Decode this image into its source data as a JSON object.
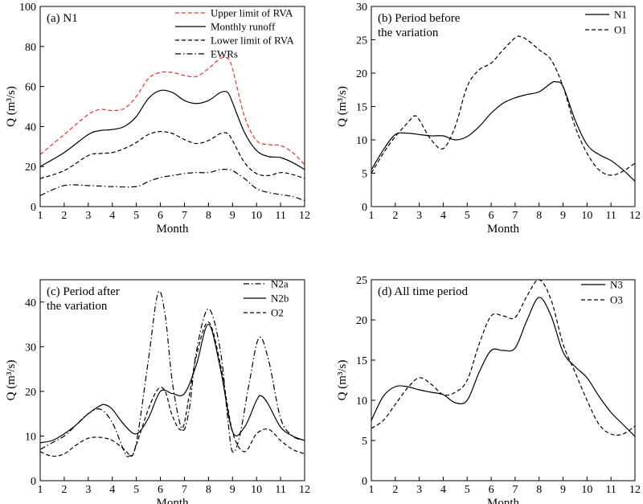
{
  "chart_data": [
    {
      "type": "line",
      "title": "(a) N1",
      "xlabel": "Month",
      "ylabel": "Q (m³/s)",
      "xlim": [
        1,
        12
      ],
      "ylim": [
        0,
        100
      ],
      "xticks": [
        "1",
        "2",
        "3",
        "4",
        "5",
        "6",
        "7",
        "8",
        "9",
        "10",
        "11",
        "12"
      ],
      "yticks": [
        "0",
        "20",
        "40",
        "60",
        "80",
        "100"
      ],
      "legend_position": "top-right",
      "series": [
        {
          "name": "Upper limit of RVA",
          "style": "dashed",
          "color": "#e8302a",
          "x": [
            1,
            2,
            3,
            3.5,
            4,
            4.5,
            5,
            5.5,
            6,
            6.5,
            7,
            7.5,
            8,
            8.5,
            8.8,
            9,
            9.5,
            10,
            10.5,
            11,
            11.5,
            12
          ],
          "y": [
            26,
            36,
            46,
            48.5,
            48,
            49,
            55,
            64,
            67,
            67,
            65.5,
            65,
            69,
            74,
            74,
            69,
            45,
            33,
            31,
            30.5,
            27,
            21
          ]
        },
        {
          "name": "Monthly runoff",
          "style": "solid",
          "color": "#000000",
          "x": [
            1,
            2,
            3,
            3.5,
            4,
            4.5,
            5,
            5.5,
            6,
            6.5,
            7,
            7.5,
            8,
            8.5,
            8.8,
            9,
            9.5,
            10,
            10.5,
            11,
            11.5,
            12
          ],
          "y": [
            20,
            27,
            36,
            38,
            38.5,
            40,
            45,
            54,
            58,
            57,
            53,
            51.5,
            53,
            57,
            57,
            52,
            37,
            28,
            25,
            24.5,
            22,
            18.5
          ]
        },
        {
          "name": "Lower limit of RVA",
          "style": "dashed",
          "color": "#000000",
          "x": [
            1,
            2,
            3,
            3.5,
            4,
            4.5,
            5,
            5.5,
            6,
            6.5,
            7,
            7.5,
            8,
            8.5,
            8.8,
            9,
            9.5,
            10,
            10.5,
            11,
            11.5,
            12
          ],
          "y": [
            14,
            18,
            25.5,
            26.5,
            27,
            29,
            32,
            36,
            37.5,
            36.5,
            33.5,
            31.5,
            33,
            36.5,
            36.5,
            33,
            22,
            16.5,
            15.5,
            17,
            16,
            14
          ]
        },
        {
          "name": "EWRs",
          "style": "dashdot",
          "color": "#000000",
          "x": [
            1,
            2,
            3,
            4,
            5,
            5.5,
            6,
            6.5,
            7,
            7.5,
            8,
            8.5,
            8.8,
            9,
            9.5,
            10,
            10.5,
            11,
            11.5,
            12
          ],
          "y": [
            5.5,
            10.5,
            10.5,
            10,
            10,
            12.5,
            14.5,
            15.5,
            16.5,
            17,
            17,
            18.5,
            18.5,
            18,
            14,
            9,
            7,
            6,
            5,
            3
          ]
        }
      ]
    },
    {
      "type": "line",
      "title": "(b) Period before",
      "title_line2": "the variation",
      "xlabel": "Month",
      "ylabel": "Q (m³/s)",
      "xlim": [
        1,
        12
      ],
      "ylim": [
        0,
        30
      ],
      "xticks": [
        "1",
        "2",
        "3",
        "4",
        "5",
        "6",
        "7",
        "8",
        "9",
        "10",
        "11",
        "12"
      ],
      "yticks": [
        "0",
        "5",
        "10",
        "15",
        "20",
        "25",
        "30"
      ],
      "legend_position": "top-right",
      "series": [
        {
          "name": "N1",
          "style": "solid",
          "color": "#000000",
          "x": [
            1,
            1.5,
            2,
            2.5,
            3,
            3.5,
            4,
            4.5,
            5,
            5.5,
            6,
            6.5,
            7,
            7.5,
            8,
            8.5,
            8.7,
            9,
            9.5,
            10,
            10.5,
            11,
            11.5,
            12
          ],
          "y": [
            5.5,
            8.5,
            10.8,
            11,
            10.8,
            10.6,
            10.6,
            10,
            10.5,
            12,
            14,
            15.5,
            16.3,
            16.8,
            17.2,
            18.5,
            18.7,
            18,
            13,
            9.3,
            7.8,
            6.9,
            5.5,
            3.8
          ]
        },
        {
          "name": "O1",
          "style": "dashed",
          "color": "#000000",
          "x": [
            1,
            1.5,
            2,
            2.5,
            2.8,
            3,
            3.5,
            4,
            4.5,
            5,
            5.5,
            6,
            6.5,
            7,
            7.2,
            7.5,
            8,
            8.5,
            9,
            9.5,
            10,
            10.5,
            11,
            11.5,
            12
          ],
          "y": [
            5,
            8,
            10.5,
            12.5,
            13.6,
            13,
            10,
            8.7,
            12,
            18,
            20.5,
            21.5,
            23.5,
            25.3,
            25.5,
            25,
            23.5,
            22,
            18,
            12,
            8,
            5.5,
            4.7,
            5.3,
            6.5
          ]
        }
      ]
    },
    {
      "type": "line",
      "title": "(c) Period after",
      "title_line2": "the variation",
      "xlabel": "Month",
      "ylabel": "Q (m³/s)",
      "xlim": [
        1,
        12
      ],
      "ylim": [
        0,
        45
      ],
      "xticks": [
        "1",
        "2",
        "3",
        "4",
        "5",
        "6",
        "7",
        "8",
        "9",
        "10",
        "11",
        "12"
      ],
      "yticks": [
        "0",
        "10",
        "20",
        "30",
        "40"
      ],
      "legend_position": "top-right",
      "series": [
        {
          "name": "N2a",
          "style": "dashdot",
          "color": "#000000",
          "x": [
            1,
            1.5,
            2,
            2.5,
            3,
            3.5,
            4,
            4.5,
            4.7,
            5,
            5.5,
            5.9,
            6.2,
            6.5,
            6.9,
            7.2,
            7.5,
            8,
            8.5,
            8.8,
            9,
            9.3,
            9.7,
            10.1,
            10.5,
            11,
            11.5,
            12
          ],
          "y": [
            7,
            8.5,
            10,
            12.5,
            15,
            16,
            13,
            6.5,
            5.5,
            8.5,
            27,
            42,
            37,
            22,
            11.5,
            16,
            29,
            38.5,
            29,
            14,
            6.5,
            10,
            22,
            32,
            27,
            14,
            10,
            9
          ]
        },
        {
          "name": "N2b",
          "style": "solid",
          "color": "#000000",
          "x": [
            1,
            1.5,
            2,
            2.5,
            3,
            3.5,
            3.7,
            4,
            4.5,
            5,
            5.5,
            6,
            6.5,
            7,
            7.5,
            8,
            8.5,
            9,
            9.5,
            10,
            10.2,
            10.5,
            11,
            11.5,
            12
          ],
          "y": [
            8.5,
            9,
            10.5,
            12.5,
            15,
            16.8,
            17,
            16,
            12.5,
            10.5,
            14,
            20,
            19.5,
            19.5,
            26,
            35,
            25,
            11,
            12,
            18,
            19,
            17,
            12,
            10,
            9
          ]
        },
        {
          "name": "O2",
          "style": "dashed",
          "color": "#000000",
          "x": [
            1,
            1.5,
            2,
            2.5,
            3,
            3.5,
            4,
            4.5,
            4.8,
            5,
            5.5,
            5.9,
            6.2,
            6.5,
            6.9,
            7.2,
            7.5,
            8,
            8.5,
            9,
            9.5,
            10,
            10.5,
            11,
            11.5,
            12
          ],
          "y": [
            6.5,
            5.5,
            6,
            8,
            9.5,
            9.7,
            9,
            7,
            5.5,
            8,
            16,
            20.5,
            20,
            14.5,
            11.5,
            19,
            28,
            35.5,
            26,
            11,
            6.5,
            10.5,
            11.5,
            9,
            7,
            6
          ]
        }
      ]
    },
    {
      "type": "line",
      "title": "(d) All time period",
      "xlabel": "Month",
      "ylabel": "Q (m³/s)",
      "xlim": [
        1,
        12
      ],
      "ylim": [
        0,
        25
      ],
      "xticks": [
        "1",
        "2",
        "3",
        "4",
        "5",
        "6",
        "7",
        "8",
        "9",
        "10",
        "11",
        "12"
      ],
      "yticks": [
        "0",
        "5",
        "10",
        "15",
        "20",
        "25"
      ],
      "legend_position": "top-right",
      "series": [
        {
          "name": "N3",
          "style": "solid",
          "color": "#000000",
          "x": [
            1,
            1.5,
            2,
            2.5,
            3,
            3.5,
            4,
            4.5,
            5,
            5.5,
            6,
            6.5,
            7,
            7.5,
            8,
            8.5,
            9,
            9.5,
            10,
            10.5,
            11,
            11.5,
            12
          ],
          "y": [
            7.5,
            10.5,
            11.7,
            11.7,
            11.3,
            11,
            10.7,
            9.7,
            10,
            13.5,
            16.2,
            16.2,
            16.5,
            20,
            22.8,
            20.5,
            16,
            14.2,
            12.8,
            10.5,
            8.5,
            7,
            5.5
          ]
        },
        {
          "name": "O3",
          "style": "dashed",
          "color": "#000000",
          "x": [
            1,
            1.5,
            2,
            2.5,
            3,
            3.5,
            4,
            4.5,
            5,
            5.5,
            6,
            6.5,
            7,
            7.5,
            8,
            8.5,
            9,
            9.5,
            10,
            10.5,
            11,
            11.5,
            12
          ],
          "y": [
            6.5,
            7.5,
            9.5,
            11.5,
            12.8,
            12,
            10.7,
            11,
            12.5,
            17,
            20.5,
            20.5,
            20.3,
            23,
            25,
            22.5,
            17,
            13.5,
            10,
            7,
            5.8,
            5.8,
            6.8
          ]
        }
      ]
    }
  ]
}
